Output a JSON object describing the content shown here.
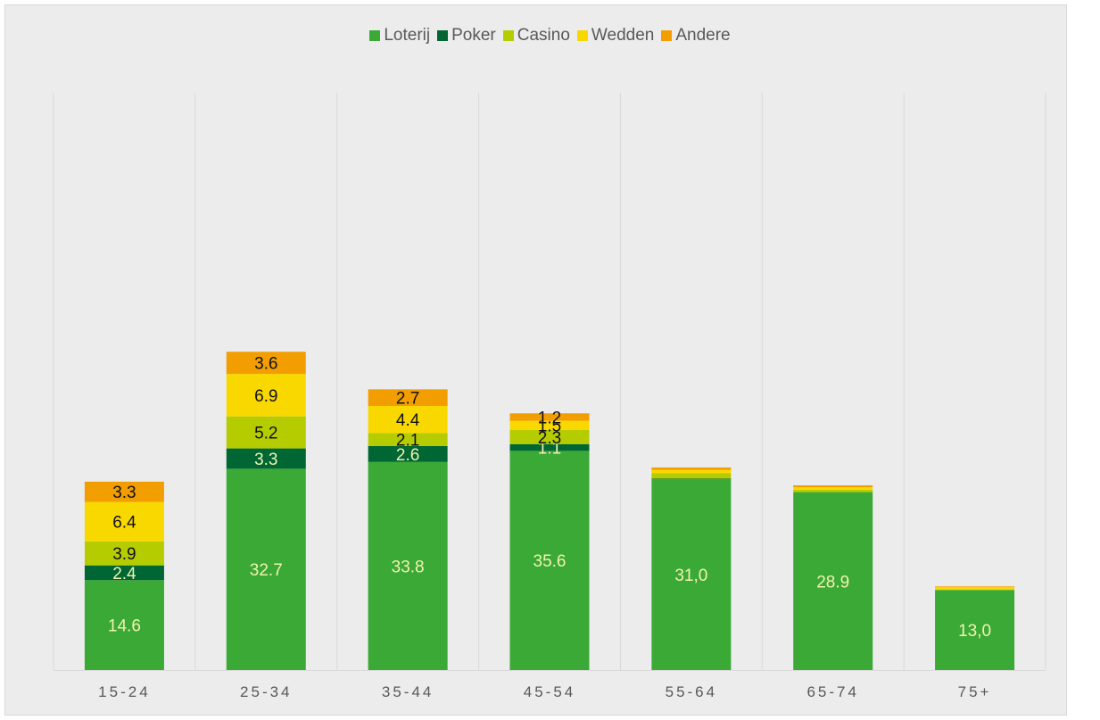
{
  "chart_data": {
    "type": "bar",
    "stacked": true,
    "title": "",
    "xlabel": "",
    "ylabel": "",
    "ylim": [
      0,
      60
    ],
    "grid": "vertical",
    "legend_position": "top",
    "categories": [
      "15-24",
      "25-34",
      "35-44",
      "45-54",
      "55-64",
      "65-74",
      "75+"
    ],
    "series": [
      {
        "name": "Loterij",
        "color": "#3aa935",
        "label_color": "#f2f2b0",
        "values": [
          14.6,
          32.7,
          33.8,
          35.6,
          31.0,
          28.9,
          13.0
        ],
        "labels": [
          "14.6",
          "32.7",
          "33.8",
          "35.6",
          "31,0",
          "28.9",
          "13,0"
        ]
      },
      {
        "name": "Poker",
        "color": "#006633",
        "label_color": "#f2f2b0",
        "values": [
          2.4,
          3.3,
          2.6,
          1.1,
          0.1,
          0.0,
          0.0
        ],
        "labels": [
          "2.4",
          "3.3",
          "2.6",
          "1.1",
          "",
          "",
          ""
        ]
      },
      {
        "name": "Casino",
        "color": "#b5cc00",
        "label_color": "#111111",
        "values": [
          3.9,
          5.2,
          2.1,
          2.3,
          0.9,
          0.4,
          0.1
        ],
        "labels": [
          "3.9",
          "5.2",
          "2.1",
          "2.3",
          "",
          "",
          ""
        ]
      },
      {
        "name": "Wedden",
        "color": "#f9d800",
        "label_color": "#111111",
        "values": [
          6.4,
          6.9,
          4.4,
          1.5,
          0.5,
          0.4,
          0.4
        ],
        "labels": [
          "6.4",
          "6.9",
          "4.4",
          "1.5",
          "",
          "",
          ""
        ]
      },
      {
        "name": "Andere",
        "color": "#f29e00",
        "label_color": "#111111",
        "values": [
          3.3,
          3.6,
          2.7,
          1.2,
          0.4,
          0.3,
          0.1
        ],
        "labels": [
          "3.3",
          "3.6",
          "2.7",
          "1.2",
          "",
          "",
          ""
        ]
      }
    ]
  }
}
